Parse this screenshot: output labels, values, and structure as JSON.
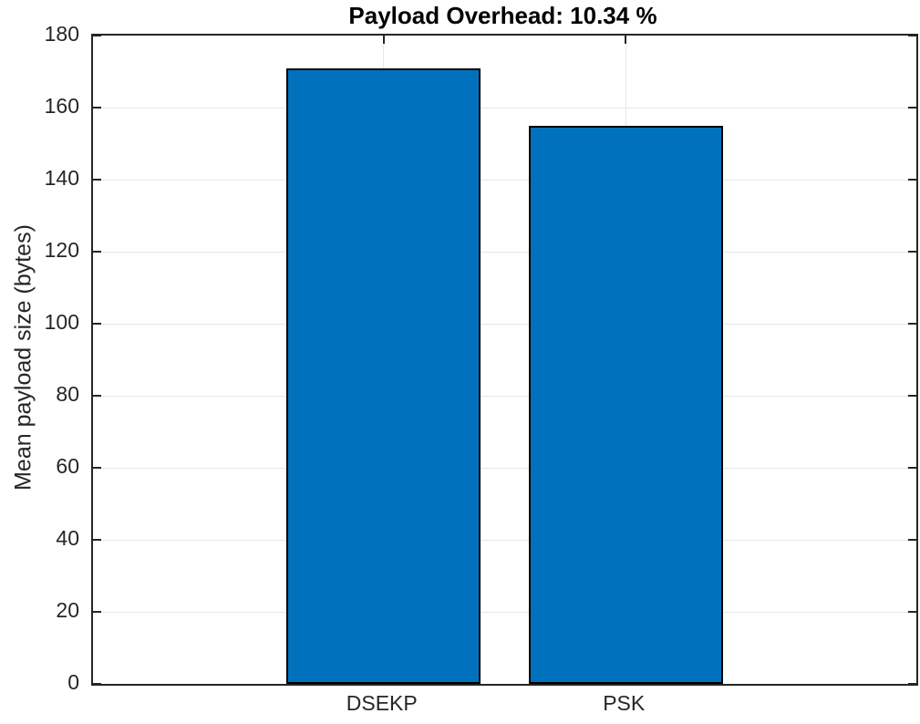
{
  "chart_data": {
    "type": "bar",
    "title": "Payload Overhead: 10.34 %",
    "categories": [
      "DSEKP",
      "PSK"
    ],
    "values": [
      171,
      155
    ],
    "xlabel": "",
    "ylabel": "Mean payload size (bytes)",
    "ylim": [
      0,
      180
    ],
    "yticks": [
      0,
      20,
      40,
      60,
      80,
      100,
      120,
      140,
      160,
      180
    ],
    "ytick_labels": [
      "0",
      "20",
      "40",
      "60",
      "80",
      "100",
      "120",
      "140",
      "160",
      "180"
    ],
    "grid": true,
    "legend_position": "none",
    "bar_color": "#0072BD",
    "bar_edge_color": "#000000",
    "axis_color": "#262626",
    "grid_color": "#e6e6e6",
    "title_color": "#000000",
    "background_color": "#ffffff"
  }
}
